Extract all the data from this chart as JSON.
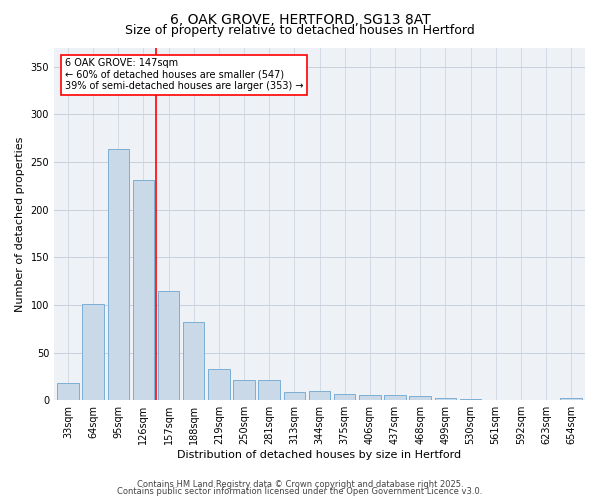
{
  "title": "6, OAK GROVE, HERTFORD, SG13 8AT",
  "subtitle": "Size of property relative to detached houses in Hertford",
  "xlabel": "Distribution of detached houses by size in Hertford",
  "ylabel": "Number of detached properties",
  "categories": [
    "33sqm",
    "64sqm",
    "95sqm",
    "126sqm",
    "157sqm",
    "188sqm",
    "219sqm",
    "250sqm",
    "281sqm",
    "313sqm",
    "344sqm",
    "375sqm",
    "406sqm",
    "437sqm",
    "468sqm",
    "499sqm",
    "530sqm",
    "561sqm",
    "592sqm",
    "623sqm",
    "654sqm"
  ],
  "values": [
    18,
    101,
    263,
    231,
    115,
    82,
    33,
    21,
    21,
    9,
    10,
    6,
    5,
    5,
    4,
    2,
    1,
    0,
    0,
    0,
    2
  ],
  "bar_color": "#c9d9e8",
  "bar_edge_color": "#7bafd4",
  "annotation_text": "6 OAK GROVE: 147sqm\n← 60% of detached houses are smaller (547)\n39% of semi-detached houses are larger (353) →",
  "annotation_box_color": "white",
  "annotation_box_edge_color": "red",
  "red_line_color": "red",
  "ylim": [
    0,
    370
  ],
  "yticks": [
    0,
    50,
    100,
    150,
    200,
    250,
    300,
    350
  ],
  "footer1": "Contains HM Land Registry data © Crown copyright and database right 2025.",
  "footer2": "Contains public sector information licensed under the Open Government Licence v3.0.",
  "bg_color": "#eef2f7",
  "grid_color": "#c8d0dc",
  "title_fontsize": 10,
  "subtitle_fontsize": 9,
  "axis_label_fontsize": 8,
  "tick_fontsize": 7,
  "footer_fontsize": 6,
  "annotation_fontsize": 7
}
